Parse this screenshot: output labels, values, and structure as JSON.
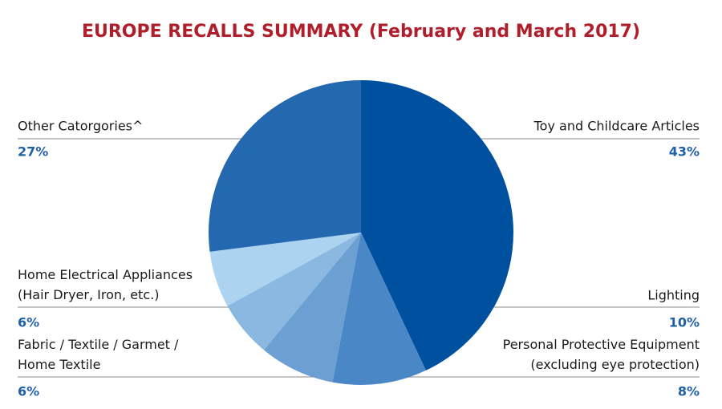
{
  "chart_data": {
    "type": "pie",
    "title": "EUROPE RECALLS SUMMARY (February and March 2017)",
    "categories": [
      "Toy and Childcare Articles",
      "Lighting",
      "Personal Protective Equipment\n(excluding eye protection)",
      "Fabric / Textile / Garmet /\nHome Textile",
      "Home Electrical Appliances\n(Hair Dryer, Iron, etc.)",
      "Other Catorgories^"
    ],
    "values": [
      43,
      10,
      8,
      6,
      6,
      27
    ],
    "value_labels": [
      "43%",
      "10%",
      "8%",
      "6%",
      "6%",
      "27%"
    ],
    "colors": [
      "#0050a0",
      "#4a87c6",
      "#6c9fd2",
      "#8ab8e0",
      "#acd3f0",
      "#2468b0"
    ]
  }
}
